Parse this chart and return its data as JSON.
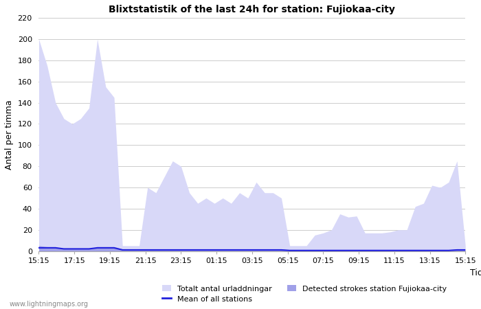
{
  "title": "Blixtstatistik of the last 24h for station: Fujiokaa-city",
  "xlabel": "Tid",
  "ylabel": "Antal per timma",
  "xlim_labels": [
    "15:15",
    "17:15",
    "19:15",
    "21:15",
    "23:15",
    "01:15",
    "03:15",
    "05:15",
    "07:15",
    "09:15",
    "11:15",
    "13:15",
    "15:15"
  ],
  "ylim": [
    0,
    220
  ],
  "yticks": [
    0,
    20,
    40,
    60,
    80,
    100,
    120,
    140,
    160,
    180,
    200,
    220
  ],
  "background_color": "#ffffff",
  "grid_color": "#cccccc",
  "fill_total_color": "#d8d8f8",
  "fill_station_color": "#a0a0e8",
  "mean_line_color": "#2020dd",
  "watermark": "www.lightningmaps.org",
  "legend": {
    "total": "Totalt antal urladdningar",
    "station": "Detected strokes station Fujiokaa-city",
    "mean": "Mean of all stations"
  },
  "total_y": [
    200,
    175,
    140,
    125,
    120,
    125,
    135,
    200,
    155,
    145,
    5,
    5,
    5,
    60,
    55,
    70,
    85,
    80,
    55,
    45,
    50,
    45,
    50,
    45,
    55,
    50,
    65,
    55,
    55,
    50,
    5,
    5,
    5,
    15,
    17,
    20,
    35,
    32,
    33,
    17,
    17,
    17,
    18,
    20,
    20,
    42,
    45,
    62,
    60,
    65,
    85,
    5
  ],
  "station_y": [
    5,
    4,
    4,
    2,
    2,
    2,
    2,
    4,
    4,
    4,
    2,
    2,
    2,
    2,
    2,
    2,
    2,
    2,
    2,
    2,
    2,
    2,
    2,
    2,
    2,
    2,
    2,
    2,
    2,
    2,
    1,
    1,
    1,
    1,
    1,
    1,
    1,
    1,
    1,
    1,
    1,
    1,
    1,
    1,
    1,
    1,
    1,
    1,
    1,
    1,
    2,
    2
  ],
  "mean_y": [
    3,
    3,
    3,
    2,
    2,
    2,
    2,
    3,
    3,
    3,
    1,
    1,
    1,
    1,
    1,
    1,
    1,
    1,
    1,
    1,
    1,
    1,
    1,
    1,
    1,
    1,
    1,
    1,
    1,
    1,
    0.5,
    0.5,
    0.5,
    0.5,
    0.5,
    0.5,
    0.5,
    0.5,
    0.5,
    0.5,
    0.5,
    0.5,
    0.5,
    0.5,
    0.5,
    0.5,
    0.5,
    0.5,
    0.5,
    0.5,
    1,
    1
  ]
}
